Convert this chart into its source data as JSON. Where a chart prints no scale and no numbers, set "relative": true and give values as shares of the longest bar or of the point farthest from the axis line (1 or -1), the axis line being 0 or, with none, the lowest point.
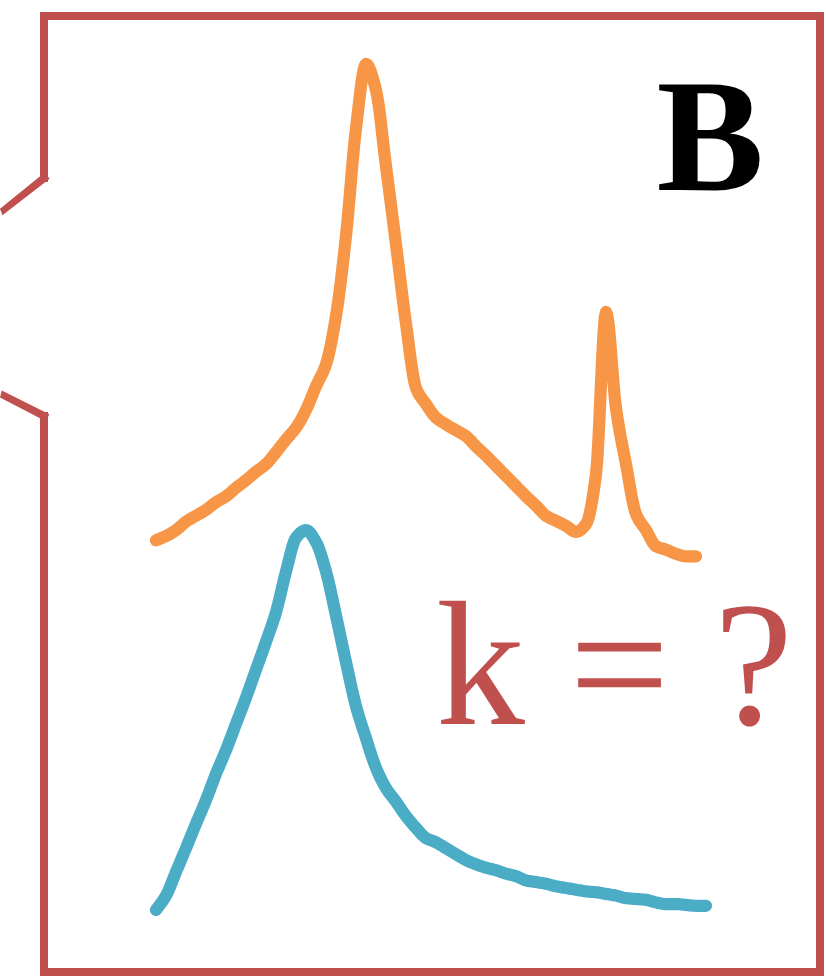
{
  "chart_data": {
    "type": "line",
    "title": "B",
    "relative": true,
    "categories": [
      null,
      null,
      null,
      null,
      null,
      null,
      null,
      null,
      null,
      null,
      null,
      null,
      null,
      null,
      null,
      null,
      null,
      null,
      null,
      null,
      null,
      null,
      null,
      null,
      null,
      null,
      null,
      null,
      null,
      null,
      null,
      null,
      null,
      null,
      null,
      null,
      null,
      null,
      null,
      null,
      null,
      null,
      null,
      null,
      null,
      null,
      null,
      null,
      null,
      null,
      null,
      null,
      null,
      null,
      null,
      null
    ],
    "series": [
      {
        "color": "#f79646",
        "values": [
          0.437,
          0.442,
          0.449,
          0.459,
          0.466,
          0.473,
          0.482,
          0.489,
          0.499,
          0.508,
          0.518,
          0.527,
          0.541,
          0.556,
          0.57,
          0.591,
          0.619,
          0.645,
          0.702,
          0.797,
          0.924,
          1,
          0.969,
          0.879,
          0.787,
          0.693,
          0.617,
          0.598,
          0.582,
          0.574,
          0.567,
          0.56,
          0.548,
          0.537,
          0.525,
          0.513,
          0.501,
          0.489,
          0.478,
          0.466,
          0.46,
          0.454,
          0.447,
          0.456,
          0.515,
          0.707,
          0.593,
          0.527,
          0.468,
          0.449,
          0.43,
          0.426,
          0.421,
          0.418,
          0.418,
          null
        ]
      },
      {
        "color": "#4bacc6",
        "values": [
          0,
          0.017,
          0.045,
          0.073,
          0.102,
          0.13,
          0.161,
          0.189,
          0.22,
          0.251,
          0.284,
          0.317,
          0.352,
          0.4,
          0.44,
          0.449,
          0.435,
          0.4,
          0.348,
          0.293,
          0.241,
          0.203,
          0.168,
          0.144,
          0.128,
          0.111,
          0.097,
          0.085,
          0.08,
          0.073,
          0.066,
          0.059,
          0.054,
          0.05,
          0.047,
          0.043,
          0.04,
          0.035,
          0.033,
          0.031,
          0.028,
          0.026,
          0.024,
          0.022,
          0.021,
          0.019,
          0.017,
          0.014,
          0.013,
          0.012,
          0.009,
          0.007,
          0.007,
          0.006,
          0.005,
          0.005
        ]
      }
    ],
    "annotations": [
      "k = ?"
    ]
  }
}
